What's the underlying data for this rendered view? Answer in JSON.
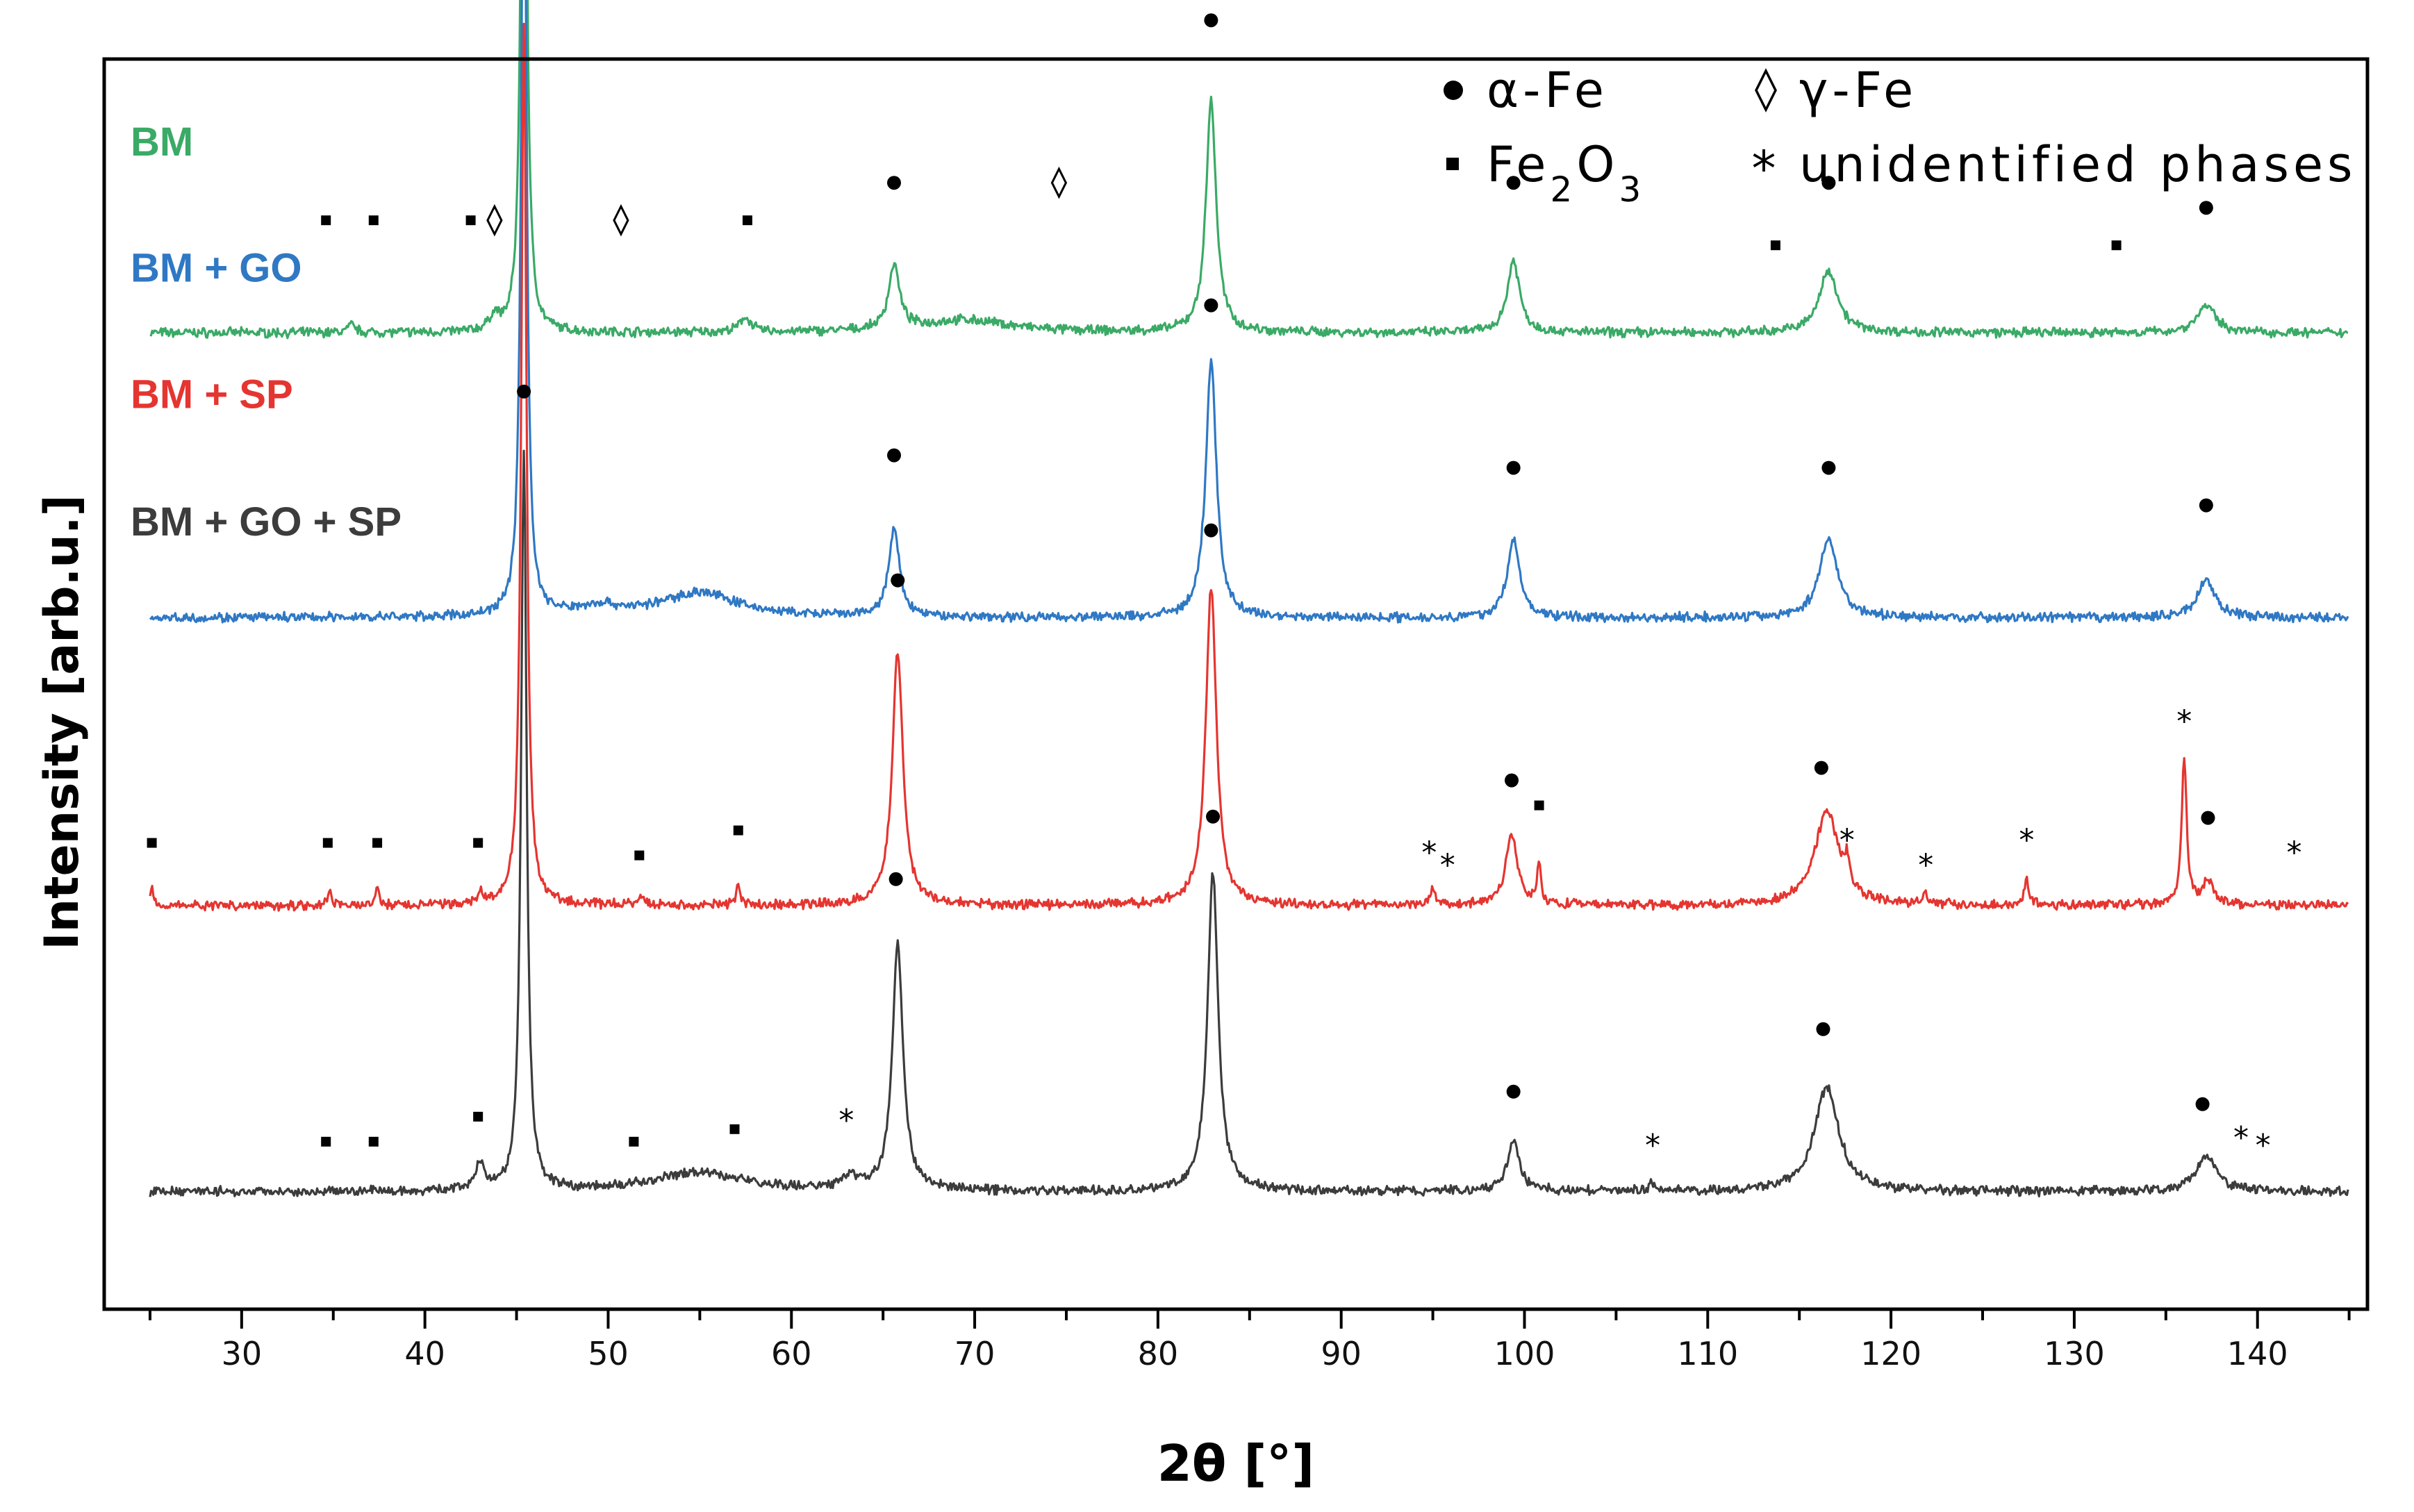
{
  "chart_data": {
    "type": "line",
    "title": "",
    "xlabel": "2θ [°]",
    "ylabel": "Intensity [arb.u.]",
    "xlim": [
      22.5,
      146
    ],
    "xticks": [
      30,
      40,
      50,
      60,
      70,
      80,
      90,
      100,
      110,
      120,
      130,
      140
    ],
    "yticks": [],
    "grid": false,
    "legend": {
      "placement": "top-right",
      "entries": [
        {
          "symbol": "circle",
          "glyph": "●",
          "label": "α-Fe"
        },
        {
          "symbol": "diamond",
          "glyph": "◊",
          "label": "γ-Fe"
        },
        {
          "symbol": "square",
          "glyph": "■",
          "label": "Fe2O3"
        },
        {
          "symbol": "asterisk",
          "glyph": "*",
          "label": "unidentified phases"
        }
      ]
    },
    "series": [
      {
        "name": "BM",
        "color": "#3aaa66",
        "baseline": 0.781,
        "peaks": [
          {
            "x": 36.0,
            "h": 0.006,
            "w": 0.25
          },
          {
            "x": 43.8,
            "h": 0.012,
            "w": 0.3
          },
          {
            "x": 45.4,
            "h": 0.705,
            "w": 0.16
          },
          {
            "x": 57.5,
            "h": 0.012,
            "w": 0.35
          },
          {
            "x": 65.6,
            "h": 0.052,
            "w": 0.35
          },
          {
            "x": 69.5,
            "h": 0.01,
            "w": 3.0
          },
          {
            "x": 82.9,
            "h": 0.186,
            "w": 0.33
          },
          {
            "x": 99.4,
            "h": 0.058,
            "w": 0.4
          },
          {
            "x": 116.6,
            "h": 0.05,
            "w": 0.6
          },
          {
            "x": 137.2,
            "h": 0.022,
            "w": 0.6
          }
        ],
        "markers": [
          {
            "x": 34.6,
            "glyph": "■",
            "y": 0.09
          },
          {
            "x": 37.2,
            "glyph": "■",
            "y": 0.09
          },
          {
            "x": 42.5,
            "glyph": "■",
            "y": 0.09
          },
          {
            "x": 43.8,
            "glyph": "◊",
            "y": 0.09
          },
          {
            "x": 45.4,
            "glyph": "●",
            "y": 0.76
          },
          {
            "x": 50.7,
            "glyph": "◊",
            "y": 0.09
          },
          {
            "x": 57.6,
            "glyph": "■",
            "y": 0.09
          },
          {
            "x": 65.6,
            "glyph": "●",
            "y": 0.12
          },
          {
            "x": 74.6,
            "glyph": "◊",
            "y": 0.12
          },
          {
            "x": 82.9,
            "glyph": "●",
            "y": 0.25
          },
          {
            "x": 99.4,
            "glyph": "●",
            "y": 0.12
          },
          {
            "x": 113.7,
            "glyph": "■",
            "y": 0.07
          },
          {
            "x": 116.6,
            "glyph": "●",
            "y": 0.12
          },
          {
            "x": 132.3,
            "glyph": "■",
            "y": 0.07
          },
          {
            "x": 137.2,
            "glyph": "●",
            "y": 0.1
          }
        ]
      },
      {
        "name": "BM + GO",
        "color": "#2f78c4",
        "baseline": 0.553,
        "peaks": [
          {
            "x": 45.4,
            "h": 0.7,
            "w": 0.17
          },
          {
            "x": 55.0,
            "h": 0.02,
            "w": 2.5
          },
          {
            "x": 49.5,
            "h": 0.008,
            "w": 1.5
          },
          {
            "x": 65.6,
            "h": 0.07,
            "w": 0.35
          },
          {
            "x": 82.9,
            "h": 0.205,
            "w": 0.35
          },
          {
            "x": 99.4,
            "h": 0.063,
            "w": 0.4
          },
          {
            "x": 116.6,
            "h": 0.063,
            "w": 0.6
          },
          {
            "x": 137.2,
            "h": 0.03,
            "w": 0.6
          }
        ],
        "markers": [
          {
            "x": 45.4,
            "glyph": "●",
            "y": 0.76
          },
          {
            "x": 65.6,
            "glyph": "●",
            "y": 0.13
          },
          {
            "x": 82.9,
            "glyph": "●",
            "y": 0.25
          },
          {
            "x": 99.4,
            "glyph": "●",
            "y": 0.12
          },
          {
            "x": 116.6,
            "glyph": "●",
            "y": 0.12
          },
          {
            "x": 137.2,
            "glyph": "●",
            "y": 0.09
          }
        ]
      },
      {
        "name": "BM + SP",
        "color": "#e53530",
        "baseline": 0.323,
        "peaks": [
          {
            "x": 25.1,
            "h": 0.015,
            "w": 0.12
          },
          {
            "x": 34.8,
            "h": 0.012,
            "w": 0.12
          },
          {
            "x": 37.4,
            "h": 0.012,
            "w": 0.12
          },
          {
            "x": 43.0,
            "h": 0.01,
            "w": 0.15
          },
          {
            "x": 45.4,
            "h": 0.705,
            "w": 0.17
          },
          {
            "x": 51.8,
            "h": 0.007,
            "w": 0.2
          },
          {
            "x": 57.1,
            "h": 0.017,
            "w": 0.12
          },
          {
            "x": 65.8,
            "h": 0.203,
            "w": 0.35
          },
          {
            "x": 82.9,
            "h": 0.253,
            "w": 0.35
          },
          {
            "x": 95.0,
            "h": 0.012,
            "w": 0.2
          },
          {
            "x": 99.3,
            "h": 0.055,
            "w": 0.4
          },
          {
            "x": 100.8,
            "h": 0.033,
            "w": 0.12
          },
          {
            "x": 116.5,
            "h": 0.075,
            "w": 0.8
          },
          {
            "x": 117.6,
            "h": 0.02,
            "w": 0.15
          },
          {
            "x": 121.9,
            "h": 0.008,
            "w": 0.2
          },
          {
            "x": 127.4,
            "h": 0.02,
            "w": 0.15
          },
          {
            "x": 136.0,
            "h": 0.118,
            "w": 0.16
          },
          {
            "x": 137.3,
            "h": 0.018,
            "w": 0.4
          }
        ],
        "markers": [
          {
            "x": 25.1,
            "glyph": "■",
            "y": 0.05
          },
          {
            "x": 34.7,
            "glyph": "■",
            "y": 0.05
          },
          {
            "x": 37.4,
            "glyph": "■",
            "y": 0.05
          },
          {
            "x": 42.9,
            "glyph": "■",
            "y": 0.05
          },
          {
            "x": 45.4,
            "glyph": "●",
            "y": 0.76
          },
          {
            "x": 51.7,
            "glyph": "■",
            "y": 0.04
          },
          {
            "x": 57.1,
            "glyph": "■",
            "y": 0.06
          },
          {
            "x": 65.8,
            "glyph": "●",
            "y": 0.26
          },
          {
            "x": 82.9,
            "glyph": "●",
            "y": 0.3
          },
          {
            "x": 94.8,
            "glyph": "*",
            "y": 0.045
          },
          {
            "x": 95.8,
            "glyph": "*",
            "y": 0.035
          },
          {
            "x": 99.3,
            "glyph": "●",
            "y": 0.1
          },
          {
            "x": 100.8,
            "glyph": "■",
            "y": 0.08
          },
          {
            "x": 116.2,
            "glyph": "●",
            "y": 0.11
          },
          {
            "x": 117.6,
            "glyph": "*",
            "y": 0.055
          },
          {
            "x": 121.9,
            "glyph": "*",
            "y": 0.035
          },
          {
            "x": 127.4,
            "glyph": "*",
            "y": 0.055
          },
          {
            "x": 136.0,
            "glyph": "*",
            "y": 0.15
          },
          {
            "x": 137.3,
            "glyph": "●",
            "y": 0.07
          },
          {
            "x": 142.0,
            "glyph": "*",
            "y": 0.045
          }
        ]
      },
      {
        "name": "BM + GO + SP",
        "color": "#3c3c3c",
        "baseline": 0.094,
        "peaks": [
          {
            "x": 43.0,
            "h": 0.02,
            "w": 0.3
          },
          {
            "x": 45.4,
            "h": 0.593,
            "w": 0.18
          },
          {
            "x": 55.0,
            "h": 0.015,
            "w": 3.0
          },
          {
            "x": 63.2,
            "h": 0.01,
            "w": 0.5
          },
          {
            "x": 65.8,
            "h": 0.198,
            "w": 0.35
          },
          {
            "x": 83.0,
            "h": 0.255,
            "w": 0.35
          },
          {
            "x": 99.4,
            "h": 0.04,
            "w": 0.4
          },
          {
            "x": 107.0,
            "h": 0.006,
            "w": 0.3
          },
          {
            "x": 116.5,
            "h": 0.083,
            "w": 0.8
          },
          {
            "x": 137.2,
            "h": 0.028,
            "w": 0.7
          }
        ],
        "markers": [
          {
            "x": 34.6,
            "glyph": "■",
            "y": 0.04
          },
          {
            "x": 37.2,
            "glyph": "■",
            "y": 0.04
          },
          {
            "x": 42.9,
            "glyph": "■",
            "y": 0.06
          },
          {
            "x": 45.4,
            "glyph": "●",
            "y": 0.64
          },
          {
            "x": 51.4,
            "glyph": "■",
            "y": 0.04
          },
          {
            "x": 56.9,
            "glyph": "■",
            "y": 0.05
          },
          {
            "x": 63.0,
            "glyph": "*",
            "y": 0.06
          },
          {
            "x": 65.7,
            "glyph": "●",
            "y": 0.25
          },
          {
            "x": 83.0,
            "glyph": "●",
            "y": 0.3
          },
          {
            "x": 99.4,
            "glyph": "●",
            "y": 0.08
          },
          {
            "x": 107.0,
            "glyph": "*",
            "y": 0.04
          },
          {
            "x": 116.3,
            "glyph": "●",
            "y": 0.13
          },
          {
            "x": 137.0,
            "glyph": "●",
            "y": 0.07
          },
          {
            "x": 139.1,
            "glyph": "*",
            "y": 0.046
          },
          {
            "x": 140.3,
            "glyph": "*",
            "y": 0.04
          }
        ]
      }
    ]
  }
}
